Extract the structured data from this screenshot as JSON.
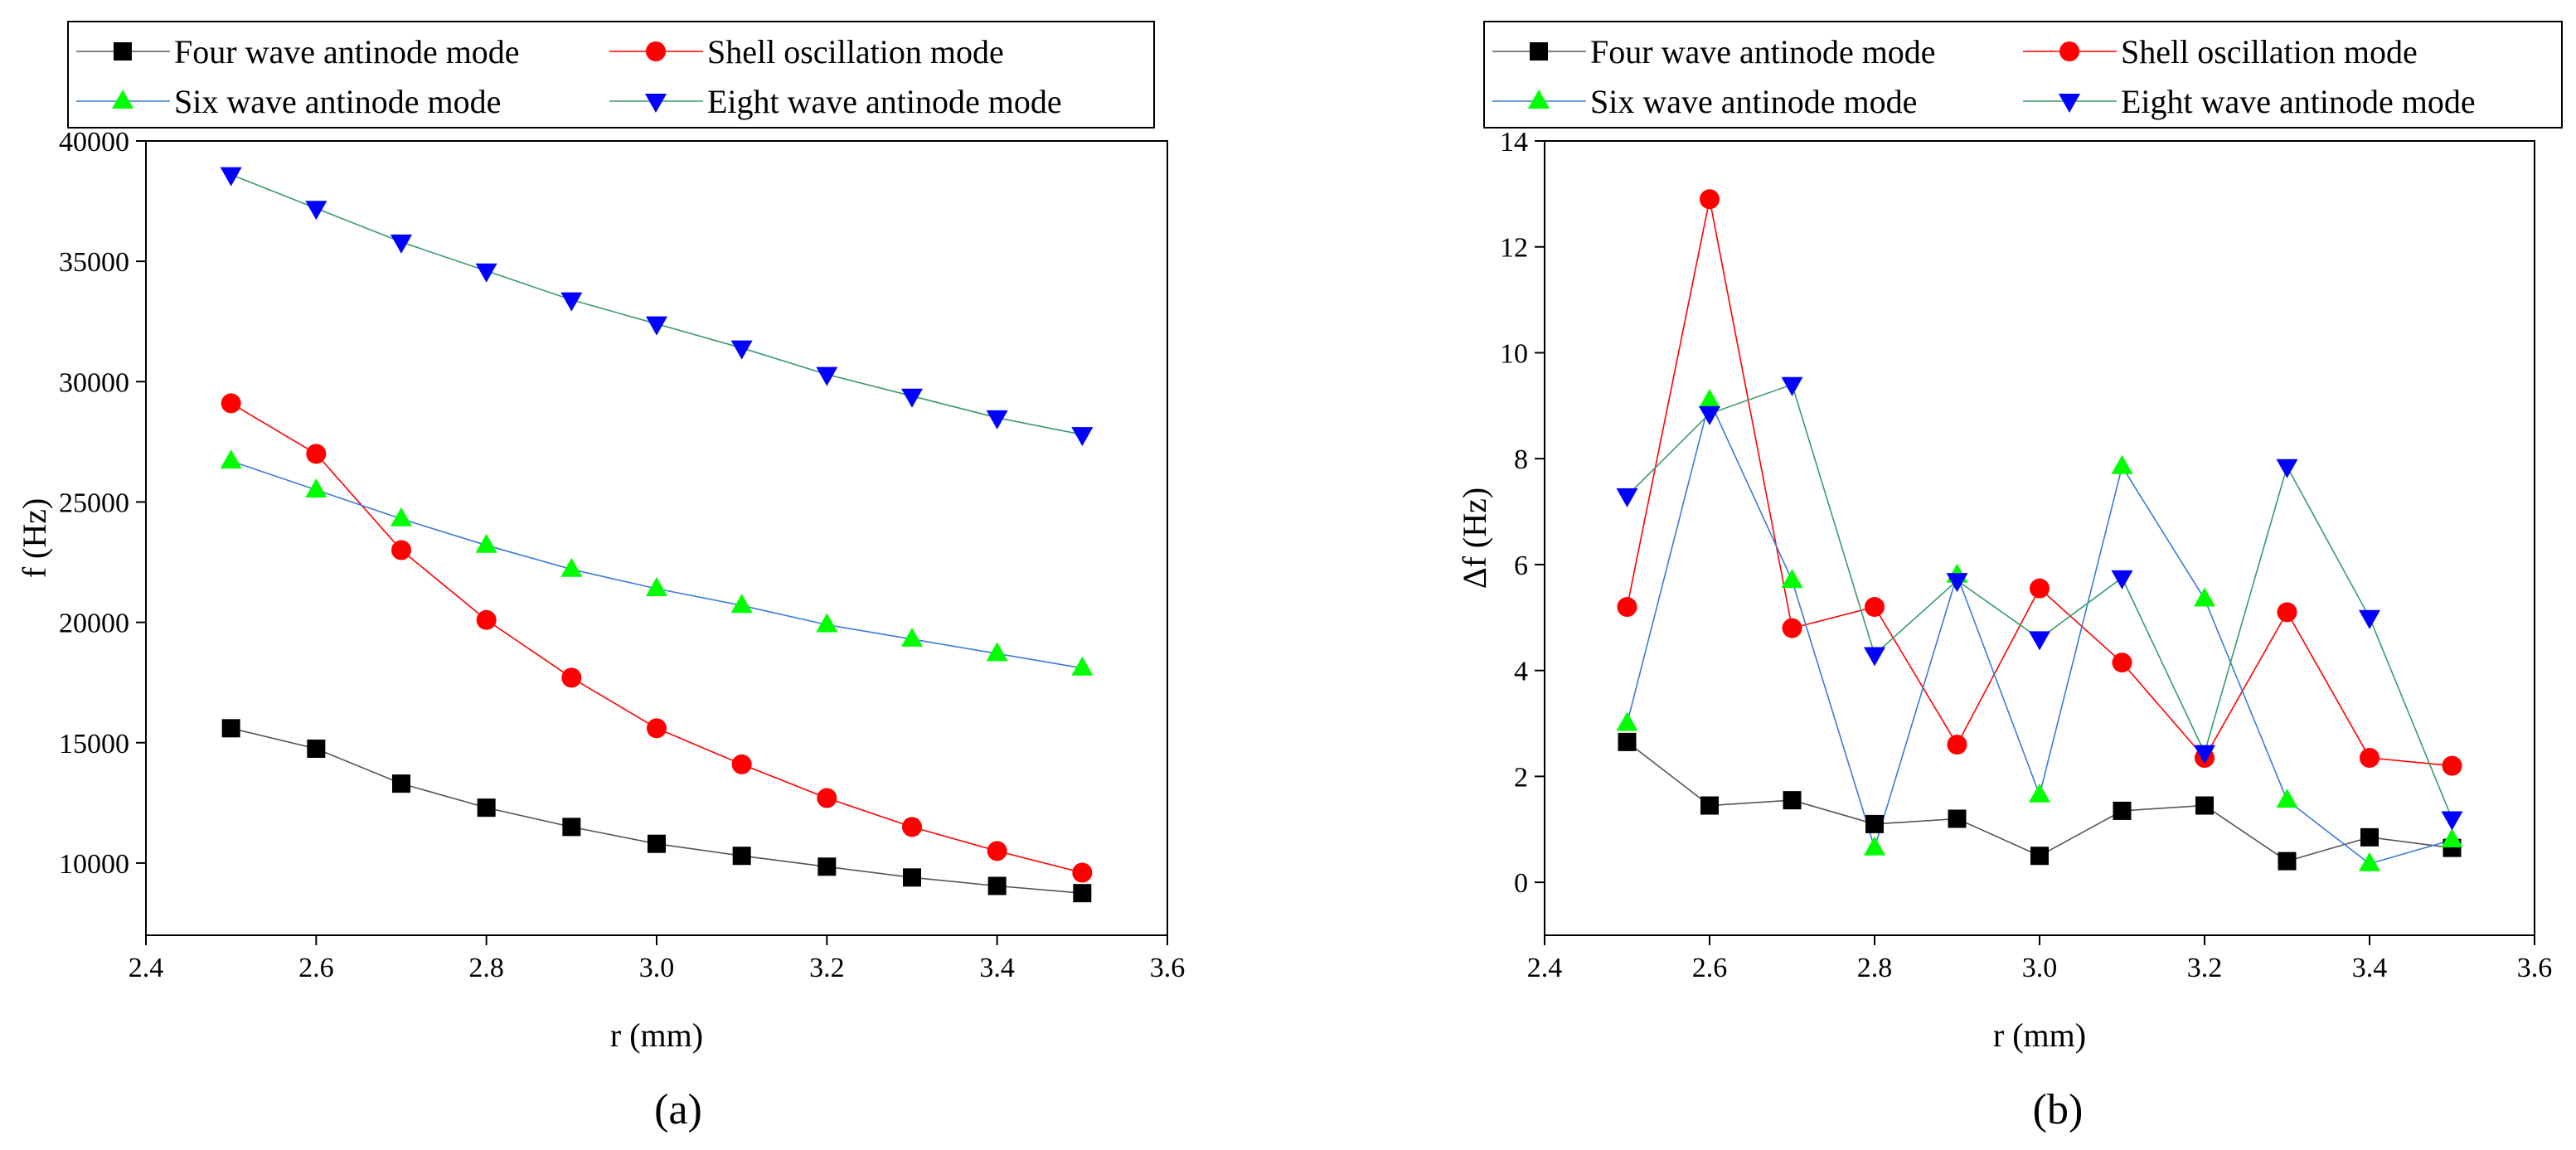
{
  "chart_data": [
    {
      "type": "line",
      "panel_label": "(a)",
      "title": "",
      "xlabel": "r (mm)",
      "ylabel": "f (Hz)",
      "xlim": [
        2.4,
        3.6
      ],
      "ylim": [
        7000,
        40000
      ],
      "xticks": [
        2.4,
        2.6,
        2.8,
        3.0,
        3.2,
        3.4,
        3.6
      ],
      "xtick_labels": [
        "2.4",
        "2.6",
        "2.8",
        "3.0",
        "3.2",
        "3.4",
        "3.6"
      ],
      "yticks": [
        10000,
        15000,
        20000,
        25000,
        30000,
        35000,
        40000
      ],
      "ytick_labels": [
        "10000",
        "15000",
        "20000",
        "25000",
        "30000",
        "35000",
        "40000"
      ],
      "grid": false,
      "legend_position": "top",
      "x": [
        2.5,
        2.6,
        2.7,
        2.8,
        2.9,
        3.0,
        3.1,
        3.2,
        3.3,
        3.4,
        3.5
      ],
      "series": [
        {
          "name": "Four wave antinode mode",
          "marker": "square",
          "color": "#000000",
          "line_color": "#555555",
          "values": [
            15600,
            14750,
            13300,
            12300,
            11500,
            10800,
            10300,
            9850,
            9400,
            9050,
            8750
          ]
        },
        {
          "name": "Shell oscillation mode",
          "marker": "circle",
          "color": "#ff0000",
          "line_color": "#ff0000",
          "values": [
            29100,
            27000,
            23000,
            20100,
            17700,
            15600,
            14100,
            12700,
            11500,
            10500,
            9600
          ]
        },
        {
          "name": "Six wave antinode mode",
          "marker": "triangle-up",
          "color": "#00ff00",
          "line_color": "#3a7ad8",
          "values": [
            26700,
            25500,
            24300,
            23200,
            22200,
            21400,
            20700,
            19900,
            19300,
            18700,
            18100
          ]
        },
        {
          "name": "Eight wave antinode mode",
          "marker": "triangle-down",
          "color": "#0000ff",
          "line_color": "#3a9a6a",
          "values": [
            38600,
            37200,
            35800,
            34600,
            33400,
            32400,
            31400,
            30300,
            29400,
            28500,
            27800
          ]
        }
      ]
    },
    {
      "type": "line",
      "panel_label": "(b)",
      "title": "",
      "xlabel": "r (mm)",
      "ylabel": "Δf (Hz)",
      "xlim": [
        2.4,
        3.6
      ],
      "ylim": [
        -1,
        14
      ],
      "xticks": [
        2.4,
        2.6,
        2.8,
        3.0,
        3.2,
        3.4,
        3.6
      ],
      "xtick_labels": [
        "2.4",
        "2.6",
        "2.8",
        "3.0",
        "3.2",
        "3.4",
        "3.6"
      ],
      "yticks": [
        0,
        2,
        4,
        6,
        8,
        10,
        12,
        14
      ],
      "ytick_labels": [
        "0",
        "2",
        "4",
        "6",
        "8",
        "10",
        "12",
        "14"
      ],
      "grid": false,
      "legend_position": "top",
      "x": [
        2.5,
        2.6,
        2.7,
        2.8,
        2.9,
        3.0,
        3.1,
        3.2,
        3.3,
        3.4,
        3.5
      ],
      "series": [
        {
          "name": "Four wave antinode mode",
          "marker": "square",
          "color": "#000000",
          "line_color": "#555555",
          "values": [
            2.65,
            1.45,
            1.55,
            1.1,
            1.2,
            0.5,
            1.35,
            1.45,
            0.4,
            0.85,
            0.65
          ]
        },
        {
          "name": "Shell oscillation mode",
          "marker": "circle",
          "color": "#ff0000",
          "line_color": "#ff0000",
          "values": [
            5.2,
            12.9,
            4.8,
            5.2,
            2.6,
            5.55,
            4.15,
            2.35,
            5.1,
            2.35,
            2.2
          ]
        },
        {
          "name": "Six wave antinode mode",
          "marker": "triangle-up",
          "color": "#00ff00",
          "line_color": "#3a7ad8",
          "values": [
            3.0,
            9.1,
            5.7,
            0.65,
            5.8,
            1.65,
            7.85,
            5.35,
            1.55,
            0.35,
            0.8
          ]
        },
        {
          "name": "Eight wave antinode mode",
          "marker": "triangle-down",
          "color": "#0000ff",
          "line_color": "#3a9a6a",
          "values": [
            7.3,
            8.85,
            9.4,
            4.3,
            5.7,
            4.6,
            5.75,
            2.45,
            7.85,
            5.0,
            1.2
          ]
        }
      ]
    }
  ]
}
